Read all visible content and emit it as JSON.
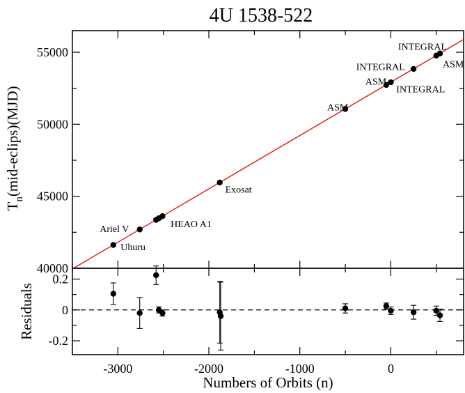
{
  "chart_data": {
    "type": "scatter",
    "title": "4U 1538-522",
    "xlabel": "Numbers of Orbits (n)",
    "xlim": [
      -3500,
      800
    ],
    "xticks": [
      -3000,
      -2000,
      -1000,
      0
    ],
    "panels": [
      {
        "id": "main",
        "ylabel_main": "T",
        "ylabel_sub": "n",
        "ylabel_rest": "(mid-eclips)(MJD)",
        "ylim": [
          40000,
          56500
        ],
        "yticks": [
          40000,
          45000,
          50000,
          55000
        ],
        "fit_line": {
          "x": [
            -3500,
            800
          ],
          "y": [
            39955.6,
            55889.1
          ]
        },
        "points": [
          {
            "x": -3050,
            "y": 41621
          },
          {
            "x": -2760,
            "y": 42695
          },
          {
            "x": -2580,
            "y": 43362
          },
          {
            "x": -2550,
            "y": 43473
          },
          {
            "x": -2510,
            "y": 43621
          },
          {
            "x": -1880,
            "y": 45954
          },
          {
            "x": -500,
            "y": 51063
          },
          {
            "x": -50,
            "y": 52730
          },
          {
            "x": 0,
            "y": 52915
          },
          {
            "x": 250,
            "y": 53841
          },
          {
            "x": 500,
            "y": 54767
          },
          {
            "x": 540,
            "y": 54915
          }
        ],
        "annotations": [
          {
            "text": "Uhuru",
            "x": -2970,
            "y": 41500
          },
          {
            "text": "Ariel V",
            "x": -3200,
            "y": 42750
          },
          {
            "text": "HEAO A1",
            "x": -2420,
            "y": 43100
          },
          {
            "text": "Exosat",
            "x": -1820,
            "y": 45500
          },
          {
            "text": "ASM",
            "x": -700,
            "y": 51200
          },
          {
            "text": "ASM",
            "x": -280,
            "y": 52980
          },
          {
            "text": "INTEGRAL",
            "x": -380,
            "y": 54000
          },
          {
            "text": "INTEGRAL",
            "x": 60,
            "y": 52450
          },
          {
            "text": "INTEGRAL",
            "x": 80,
            "y": 55400
          },
          {
            "text": "ASM",
            "x": 570,
            "y": 54210
          }
        ]
      },
      {
        "id": "residuals",
        "ylabel": "Residuals",
        "ylim": [
          -0.29,
          0.27
        ],
        "yticks": [
          -0.2,
          0,
          0.2
        ],
        "ytick_labels": [
          "-0.2",
          "0",
          "0.2"
        ],
        "zero_line": "dashed",
        "points": [
          {
            "x": -3050,
            "y": 0.105,
            "err": 0.07
          },
          {
            "x": -2760,
            "y": -0.02,
            "err": 0.1
          },
          {
            "x": -2580,
            "y": 0.225,
            "err": 0.06
          },
          {
            "x": -2550,
            "y": 0.0,
            "err": 0.02
          },
          {
            "x": -2510,
            "y": -0.02,
            "err": 0.02
          },
          {
            "x": -1880,
            "y": -0.015,
            "err": 0.2
          },
          {
            "x": -1870,
            "y": -0.04,
            "err": 0.22
          },
          {
            "x": -500,
            "y": 0.01,
            "err": 0.03
          },
          {
            "x": -50,
            "y": 0.025,
            "err": 0.02
          },
          {
            "x": 0,
            "y": -0.005,
            "err": 0.025
          },
          {
            "x": 250,
            "y": -0.015,
            "err": 0.045
          },
          {
            "x": 500,
            "y": -0.005,
            "err": 0.03
          },
          {
            "x": 540,
            "y": -0.035,
            "err": 0.04
          }
        ]
      }
    ]
  }
}
